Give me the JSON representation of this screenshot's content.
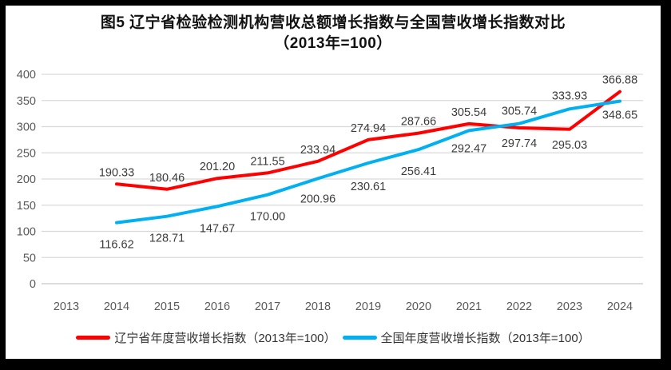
{
  "title": {
    "line1": "图5  辽宁省检验检测机构营收总额增长指数与全国营收增长指数对比",
    "line2": "（2013年=100）"
  },
  "chart_data": {
    "type": "line",
    "categories": [
      2013,
      2014,
      2015,
      2016,
      2017,
      2018,
      2019,
      2020,
      2021,
      2022,
      2023,
      2024
    ],
    "x": [
      2014,
      2015,
      2016,
      2017,
      2018,
      2019,
      2020,
      2021,
      2022,
      2023,
      2024
    ],
    "series": [
      {
        "name": "辽宁省年度营收增长指数（2013年=100）",
        "color": "#FF0000",
        "values": [
          190.33,
          180.46,
          201.2,
          211.55,
          233.94,
          274.94,
          287.66,
          305.54,
          297.74,
          295.03,
          366.88
        ],
        "label_dy": [
          -10,
          -10,
          -10,
          -10,
          -10,
          -10,
          -10,
          -10,
          24,
          24,
          -10
        ]
      },
      {
        "name": "全国年度营收增长指数（2013年=100）",
        "color": "#00B0F0",
        "values": [
          116.62,
          128.71,
          147.67,
          170.0,
          200.96,
          230.61,
          256.41,
          292.47,
          305.74,
          333.93,
          348.65
        ],
        "label_dy": [
          32,
          32,
          32,
          32,
          30,
          34,
          32,
          27,
          -11,
          -12,
          22
        ]
      }
    ],
    "ylim": [
      0,
      400
    ],
    "ytick_step": 50,
    "grid": true,
    "legend_position": "bottom",
    "label_decimals": 2
  },
  "colors": {
    "gridline": "#D9D9D9",
    "baseline": "#C6C6C6",
    "axis_text": "#595959",
    "data_label_text": "#3B3B3B"
  }
}
